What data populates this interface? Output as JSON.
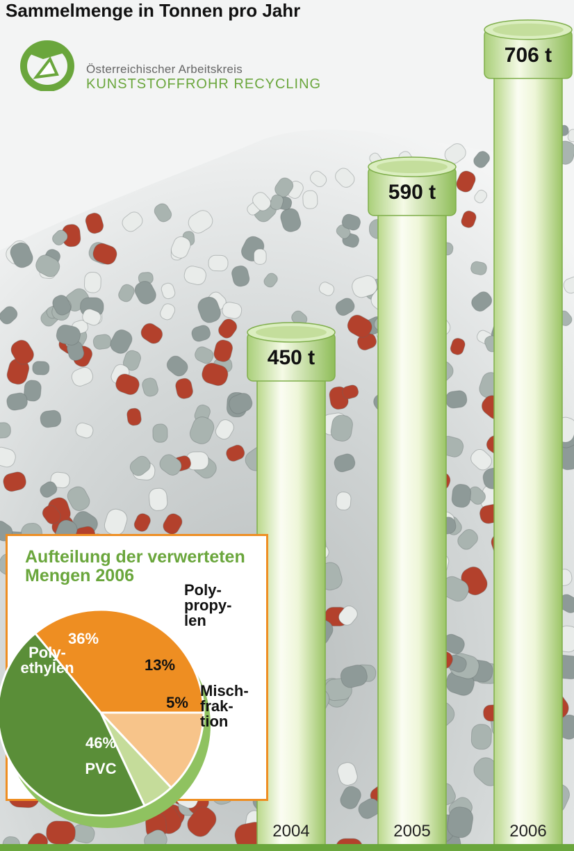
{
  "title": "Sammelmenge in Tonnen pro Jahr",
  "logo": {
    "line1": "Österreichischer Arbeitskreis",
    "line2": "KUNSTSTOFFROHR RECYCLING"
  },
  "colors": {
    "green": "#6aa63c",
    "dark_green": "#5a8e38",
    "orange": "#ee8e22",
    "light_orange": "#f7c48a",
    "light_green": "#c5dc9a"
  },
  "chart_data": [
    {
      "type": "bar",
      "title": "Sammelmenge in Tonnen pro Jahr",
      "categories": [
        "2004",
        "2005",
        "2006"
      ],
      "values": [
        450,
        590,
        706
      ],
      "value_labels": [
        "450 t",
        "590 t",
        "706 t"
      ],
      "unit": "t"
    },
    {
      "type": "pie",
      "title": "Aufteilung der verwerteten Mengen 2006",
      "slices": [
        {
          "name": "Poly-ethylen",
          "label_lines": [
            "Poly-",
            "ethylen"
          ],
          "value": 36,
          "pct_label": "36%",
          "color": "#ee8e22"
        },
        {
          "name": "Poly-propy-len",
          "label_lines": [
            "Poly-",
            "propy-",
            "len"
          ],
          "value": 13,
          "pct_label": "13%",
          "color": "#f7c48a"
        },
        {
          "name": "Misch-frak-tion",
          "label_lines": [
            "Misch-",
            "frak-",
            "tion"
          ],
          "value": 5,
          "pct_label": "5%",
          "color": "#c5dc9a"
        },
        {
          "name": "PVC",
          "label_lines": [
            "PVC"
          ],
          "value": 46,
          "pct_label": "46%",
          "color": "#5a8e38"
        }
      ]
    }
  ]
}
